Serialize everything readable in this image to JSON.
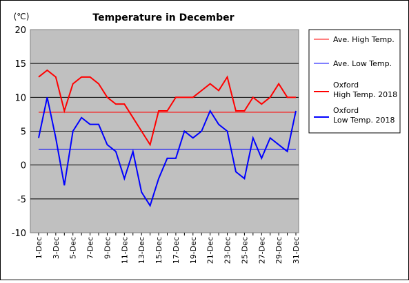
{
  "chart_data": {
    "type": "line",
    "title": "Temperature in December",
    "ylabel": "(℃)",
    "xlabel": "",
    "ylim": [
      -10,
      20
    ],
    "yticks": [
      -10,
      -5,
      0,
      5,
      10,
      15,
      20
    ],
    "grid": true,
    "legend_position": "right",
    "x_tick_labels": [
      "1-Dec",
      "3-Dec",
      "5-Dec",
      "7-Dec",
      "9-Dec",
      "11-Dec",
      "13-Dec",
      "15-Dec",
      "17-Dec",
      "19-Dec",
      "21-Dec",
      "23-Dec",
      "25-Dec",
      "27-Dec",
      "29-Dec",
      "31-Dec"
    ],
    "x": [
      1,
      2,
      3,
      4,
      5,
      6,
      7,
      8,
      9,
      10,
      11,
      12,
      13,
      14,
      15,
      16,
      17,
      18,
      19,
      20,
      21,
      22,
      23,
      24,
      25,
      26,
      27,
      28,
      29,
      30,
      31
    ],
    "reference_lines": [
      {
        "name": "Ave. High Temp.",
        "value": 7.8,
        "color": "#ff0000"
      },
      {
        "name": "Ave. Low Temp.",
        "value": 2.3,
        "color": "#0000ff"
      }
    ],
    "series": [
      {
        "name": "Oxford High Temp. 2018",
        "name_lines": [
          "Oxford",
          "High Temp. 2018"
        ],
        "color": "#ff0000",
        "values": [
          13,
          14,
          13,
          8,
          12,
          13,
          13,
          12,
          10,
          9,
          9,
          7,
          5,
          3,
          8,
          8,
          10,
          10,
          10,
          11,
          12,
          11,
          13,
          8,
          8,
          10,
          9,
          10,
          12,
          10,
          10
        ]
      },
      {
        "name": "Oxford Low Temp. 2018",
        "name_lines": [
          "Oxford",
          "Low Temp. 2018"
        ],
        "color": "#0000ff",
        "values": [
          4,
          10,
          4,
          -3,
          5,
          7,
          6,
          6,
          3,
          2,
          -2,
          2,
          -4,
          -6,
          -2,
          1,
          1,
          5,
          4,
          5,
          8,
          6,
          5,
          -1,
          -2,
          4,
          1,
          4,
          3,
          2,
          8
        ]
      }
    ],
    "plot_background": "#c0c0c0"
  }
}
